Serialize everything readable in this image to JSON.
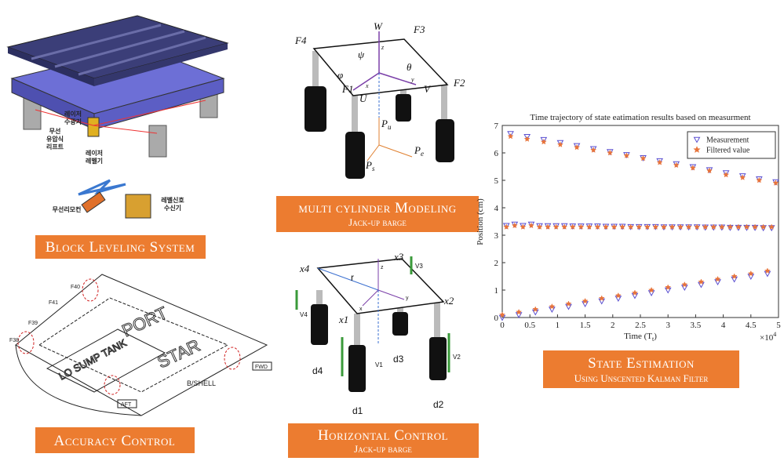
{
  "block_leveling": {
    "banner": "Block Leveling System",
    "lift": [
      "무선",
      "유압식",
      "리프트"
    ],
    "receiver": [
      "레이저",
      "수광기"
    ],
    "level": [
      "레이저",
      "레벨기"
    ],
    "remote": "무선리모컨",
    "signal": [
      "레벨신호",
      "수신기"
    ]
  },
  "multi_cylinder": {
    "banner": "multi cylinder Modeling",
    "subtitle": "Jack-up barge",
    "labels": [
      "F4",
      "W",
      "F3",
      "ψ",
      "θ",
      "φ",
      "F2",
      "F1",
      "U",
      "V",
      "z",
      "y",
      "x"
    ],
    "subscript_labels": [
      [
        "P",
        "u"
      ],
      [
        "P",
        "e"
      ],
      [
        "P",
        "s"
      ]
    ]
  },
  "horizontal": {
    "banner": "Horizontal Control",
    "subtitle": "Jack-up barge",
    "labels": [
      "x4",
      "x3",
      "x2",
      "x1",
      "r",
      "V1",
      "V2",
      "V3",
      "V4",
      "d1",
      "d2",
      "d3",
      "d4",
      "z",
      "y",
      "x"
    ]
  },
  "accuracy": {
    "banner": "Accuracy Control",
    "labels": [
      "PORT",
      "STAR",
      "LO SUMP TANK",
      "B/SHELL",
      "FWD",
      "AFT",
      "F40",
      "F41",
      "F39",
      "F38"
    ]
  },
  "estimation": {
    "banner": "State Estimation",
    "subtitle": "Using Unscented Kalman Filter"
  },
  "chart_data": {
    "type": "scatter",
    "title": "Time trajectory of state eatimation results based on measurment",
    "xlabel": [
      "Time (T",
      "t",
      ")"
    ],
    "ylabel": "Position (cm)",
    "x_multiplier": [
      "×10",
      "4"
    ],
    "xlim": [
      0,
      5
    ],
    "ylim": [
      0,
      7
    ],
    "xticks": [
      0,
      0.5,
      1,
      1.5,
      2,
      2.5,
      3,
      3.5,
      4,
      4.5,
      5
    ],
    "yticks": [
      0,
      1,
      2,
      3,
      4,
      5,
      6,
      7
    ],
    "legend": "upper right",
    "x": [
      0,
      0.075,
      0.15,
      0.225,
      0.3,
      0.375,
      0.45,
      0.525,
      0.6,
      0.675,
      0.75,
      0.825,
      0.9,
      0.975,
      1.05,
      1.125,
      1.2,
      1.275,
      1.35,
      1.425,
      1.5,
      1.575,
      1.65,
      1.725,
      1.8,
      1.875,
      1.95,
      2.025,
      2.1,
      2.175,
      2.25,
      2.325,
      2.4,
      2.475,
      2.55,
      2.625,
      2.7,
      2.775,
      2.85,
      2.925,
      3,
      3.075,
      3.15,
      3.225,
      3.3,
      3.375,
      3.45,
      3.525,
      3.6,
      3.675,
      3.75,
      3.825,
      3.9,
      3.975,
      4.05,
      4.125,
      4.2,
      4.275,
      4.35,
      4.425,
      4.5,
      4.575,
      4.65,
      4.725,
      4.8,
      4.875,
      4.95
    ],
    "series": [
      {
        "name": "Measurement",
        "color": "#5a4fd0",
        "marker": "triangle",
        "values": [
          0,
          3.35,
          6.7,
          3.4,
          0.1,
          3.35,
          6.59,
          3.4,
          0.2,
          3.34,
          6.48,
          3.34,
          0.3,
          3.34,
          6.37,
          3.34,
          0.4,
          3.33,
          6.26,
          3.33,
          0.5,
          3.33,
          6.15,
          3.33,
          0.6,
          3.32,
          6.04,
          3.32,
          0.7,
          3.32,
          5.93,
          3.31,
          0.8,
          3.31,
          5.82,
          3.31,
          0.9,
          3.31,
          5.71,
          3.3,
          1.0,
          3.3,
          5.6,
          3.3,
          1.1,
          3.3,
          5.49,
          3.3,
          1.2,
          3.29,
          5.38,
          3.29,
          1.3,
          3.29,
          5.27,
          3.28,
          1.4,
          3.28,
          5.16,
          3.28,
          1.5,
          3.28,
          5.05,
          3.27,
          1.6,
          3.27,
          4.94
        ]
      },
      {
        "name": "Filtered value",
        "color": "#e8743b",
        "marker": "star",
        "values": [
          0.1,
          3.3,
          6.6,
          3.35,
          0.2,
          3.3,
          6.5,
          3.35,
          0.3,
          3.3,
          6.4,
          3.3,
          0.4,
          3.3,
          6.3,
          3.3,
          0.5,
          3.3,
          6.2,
          3.3,
          0.6,
          3.3,
          6.1,
          3.3,
          0.7,
          3.3,
          6.0,
          3.3,
          0.8,
          3.3,
          5.9,
          3.3,
          0.9,
          3.3,
          5.8,
          3.3,
          1.0,
          3.3,
          5.65,
          3.3,
          1.1,
          3.3,
          5.55,
          3.3,
          1.2,
          3.3,
          5.45,
          3.3,
          1.3,
          3.3,
          5.35,
          3.3,
          1.4,
          3.3,
          5.2,
          3.3,
          1.5,
          3.3,
          5.1,
          3.3,
          1.6,
          3.3,
          5.0,
          3.3,
          1.7,
          3.3,
          4.9
        ]
      }
    ]
  }
}
